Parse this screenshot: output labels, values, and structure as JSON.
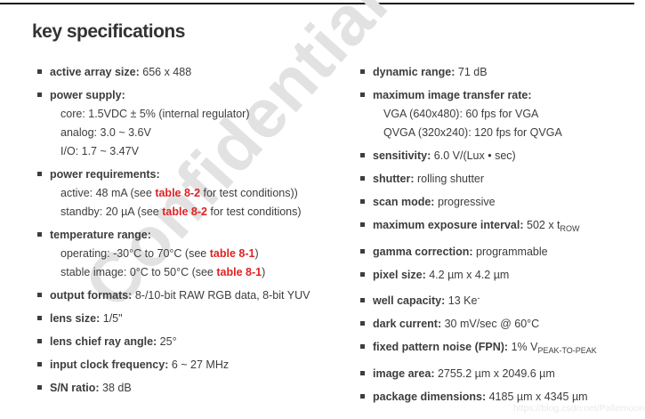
{
  "page": {
    "title": "key specifications",
    "watermark": "Confidential",
    "url_watermark": "https://blog.csdn.net/Pafiemoon"
  },
  "colors": {
    "body_text": "#3d3d3d",
    "red_link": "#e02222",
    "watermark_gray": "#e2e2e2",
    "top_border": "#161616"
  },
  "columns": {
    "left": {
      "items": [
        {
          "label": "active array size:",
          "value": " 656 x 488"
        },
        {
          "label": "power supply:",
          "value": "",
          "sublines": [
            {
              "text": "core: 1.5VDC ± 5% (internal regulator)"
            },
            {
              "text": "analog: 3.0 ~ 3.6V"
            },
            {
              "text": "I/O: 1.7 ~ 3.47V"
            }
          ]
        },
        {
          "label": "power requirements:",
          "value": "",
          "sublines": [
            {
              "pre": "active: 48 mA (see ",
              "red": "table 8-2",
              "post": " for test conditions))"
            },
            {
              "pre": "standby: 20 µA (see ",
              "red": "table 8-2",
              "post": " for test conditions)"
            }
          ]
        },
        {
          "label": "temperature range:",
          "value": "",
          "sublines": [
            {
              "pre": "operating: -30°C to 70°C (see ",
              "red": "table 8-1",
              "post": ")"
            },
            {
              "pre": "stable image: 0°C to 50°C (see ",
              "red": "table 8-1",
              "post": ")"
            }
          ]
        },
        {
          "label": "output formats:",
          "value": " 8-/10-bit RAW RGB data, 8-bit YUV"
        },
        {
          "label": "lens size:",
          "value": " 1/5\""
        },
        {
          "label": "lens chief ray angle:",
          "value": " 25°"
        },
        {
          "label": "input clock frequency:",
          "value": " 6 ~ 27 MHz"
        },
        {
          "label": "S/N ratio:",
          "value": " 38 dB"
        }
      ]
    },
    "right": {
      "items": [
        {
          "label": "dynamic range:",
          "value": " 71 dB"
        },
        {
          "label": "maximum image transfer rate:",
          "value": "",
          "sublines": [
            {
              "text": "VGA (640x480): 60 fps for VGA"
            },
            {
              "text": "QVGA (320x240): 120 fps for QVGA"
            }
          ]
        },
        {
          "label": "sensitivity:",
          "value": " 6.0 V/(Lux • sec)"
        },
        {
          "label": "shutter:",
          "value": " rolling shutter"
        },
        {
          "label": "scan mode:",
          "value": " progressive"
        },
        {
          "label": "maximum exposure interval:",
          "value": " 502 x t",
          "value_sub": "ROW"
        },
        {
          "label": "gamma correction:",
          "value": " programmable"
        },
        {
          "label": "pixel size:",
          "value": " 4.2 µm x 4.2 µm"
        },
        {
          "label": "well capacity:",
          "value": " 13 Ke",
          "value_sup": "-"
        },
        {
          "label": "dark current:",
          "value": " 30 mV/sec @ 60°C"
        },
        {
          "label": "fixed pattern noise (FPN):",
          "value": " 1% V",
          "value_sub": "PEAK-TO-PEAK"
        },
        {
          "label": "image area:",
          "value": " 2755.2 µm x 2049.6 µm"
        },
        {
          "label": "package dimensions:",
          "value": " 4185 µm x 4345 µm"
        }
      ]
    }
  }
}
